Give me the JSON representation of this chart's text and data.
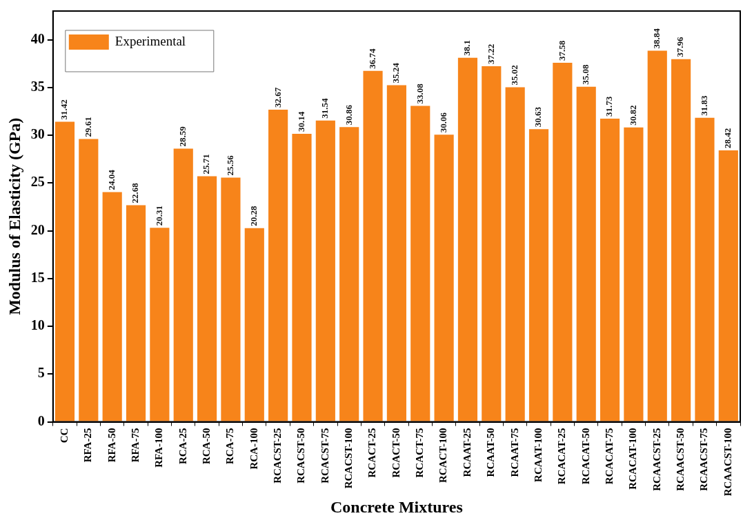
{
  "chart_data": {
    "type": "bar",
    "xlabel": "Concrete Mixtures",
    "ylabel": "Modulus of Elasticity (GPa)",
    "categories": [
      "CC",
      "RFA-25",
      "RFA-50",
      "RFA-75",
      "RFA-100",
      "RCA-25",
      "RCA-50",
      "RCA-75",
      "RCA-100",
      "RCACST-25",
      "RCACST-50",
      "RCACST-75",
      "RCACST-100",
      "RCACT-25",
      "RCACT-50",
      "RCACT-75",
      "RCACT-100",
      "RCAAT-25",
      "RCAAT-50",
      "RCAAT-75",
      "RCAAT-100",
      "RCACAT-25",
      "RCACAT-50",
      "RCACAT-75",
      "RCACAT-100",
      "RCAACST-25",
      "RCAACST-50",
      "RCAACST-75",
      "RCAACST-100"
    ],
    "series": [
      {
        "name": "Experimental",
        "color": "#f7841a",
        "values": [
          31.42,
          29.61,
          24.04,
          22.68,
          20.31,
          28.59,
          25.71,
          25.56,
          20.28,
          32.67,
          30.14,
          31.54,
          30.86,
          36.74,
          35.24,
          33.08,
          30.06,
          38.1,
          37.22,
          35.02,
          30.63,
          37.58,
          35.08,
          31.73,
          30.82,
          38.84,
          37.96,
          31.83,
          28.42
        ]
      }
    ],
    "ylim": [
      0,
      43
    ],
    "yticks": [
      0,
      5,
      10,
      15,
      20,
      25,
      30,
      35,
      40
    ],
    "grid": false,
    "legend": "top left",
    "data_labels": true
  }
}
